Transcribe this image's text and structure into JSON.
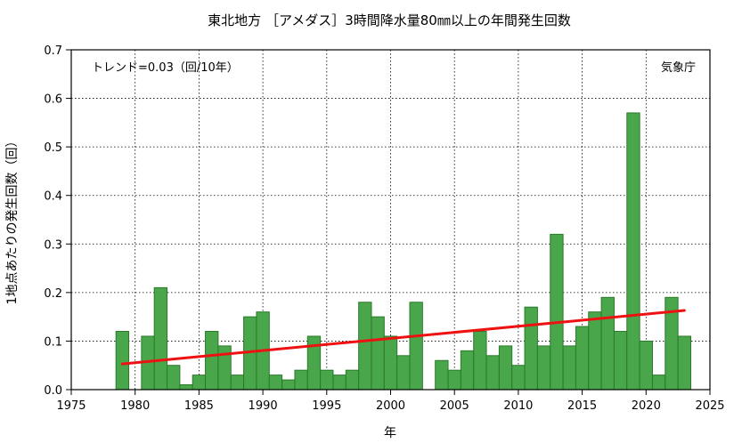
{
  "chart_data": {
    "type": "bar",
    "title": "東北地方 ［アメダス］3時間降水量80㎜以上の年間発生回数",
    "xlabel": "年",
    "ylabel": "1地点あたりの発生回数（回）",
    "xlim": [
      1975,
      2025
    ],
    "ylim": [
      0,
      0.7
    ],
    "xticks": [
      1975,
      1980,
      1985,
      1990,
      1995,
      2000,
      2005,
      2010,
      2015,
      2020,
      2025
    ],
    "yticks": [
      0.0,
      0.1,
      0.2,
      0.3,
      0.4,
      0.5,
      0.6,
      0.7
    ],
    "trend_label": "トレンド=0.03（回/10年）",
    "source_label": "気象庁",
    "bar_color": "#4aa64a",
    "bar_edge_color": "#2a7a2a",
    "trend_color": "#ee1111",
    "grid": true,
    "x": [
      1979,
      1980,
      1981,
      1982,
      1983,
      1984,
      1985,
      1986,
      1987,
      1988,
      1989,
      1990,
      1991,
      1992,
      1993,
      1994,
      1995,
      1996,
      1997,
      1998,
      1999,
      2000,
      2001,
      2002,
      2003,
      2004,
      2005,
      2006,
      2007,
      2008,
      2009,
      2010,
      2011,
      2012,
      2013,
      2014,
      2015,
      2016,
      2017,
      2018,
      2019,
      2020,
      2021,
      2022,
      2023
    ],
    "values": [
      0.12,
      0.0,
      0.11,
      0.21,
      0.05,
      0.01,
      0.03,
      0.12,
      0.09,
      0.03,
      0.15,
      0.16,
      0.03,
      0.02,
      0.04,
      0.11,
      0.04,
      0.03,
      0.04,
      0.18,
      0.15,
      0.11,
      0.07,
      0.18,
      0.0,
      0.06,
      0.04,
      0.08,
      0.12,
      0.07,
      0.09,
      0.05,
      0.17,
      0.09,
      0.32,
      0.09,
      0.13,
      0.16,
      0.19,
      0.12,
      0.57,
      0.1,
      0.03,
      0.19,
      0.11
    ],
    "trend": {
      "x": [
        1979,
        2023
      ],
      "y": [
        0.053,
        0.163
      ]
    }
  }
}
